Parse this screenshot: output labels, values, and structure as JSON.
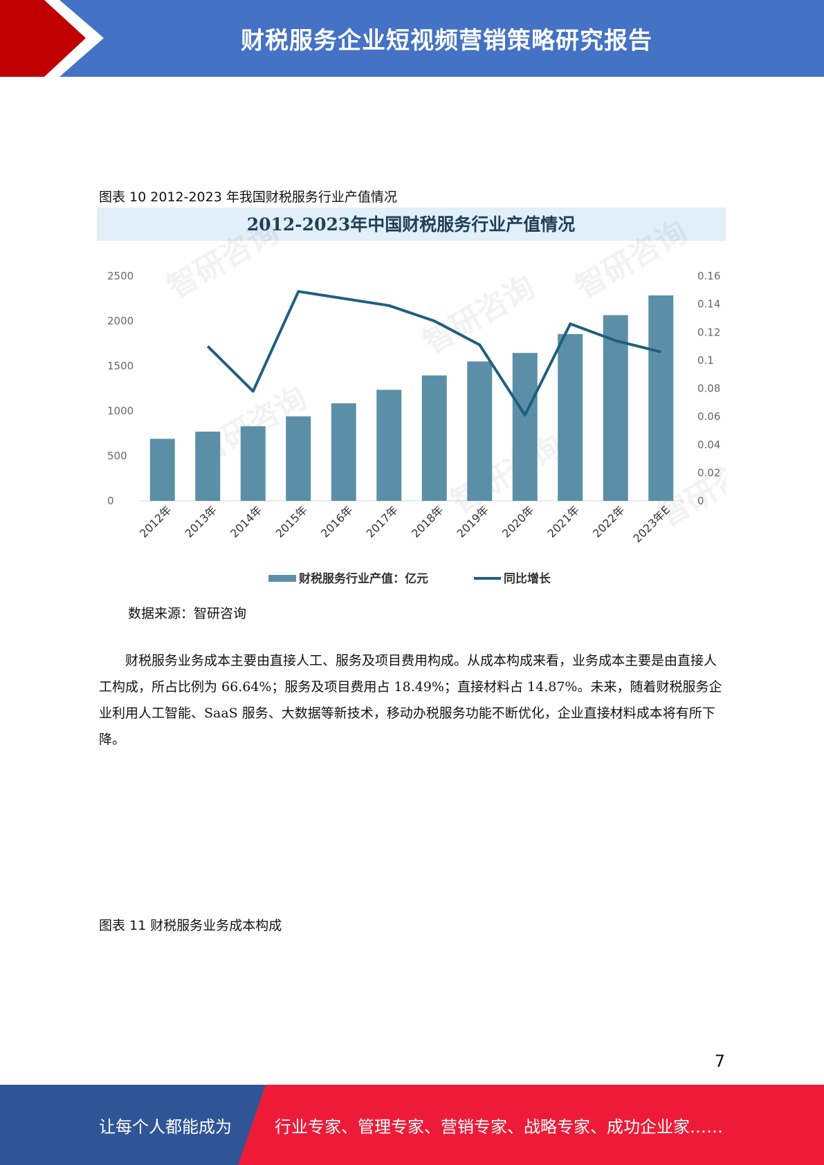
{
  "header": {
    "title": "财税服务企业短视频营销策略研究报告"
  },
  "figure10": {
    "caption": "图表 10 2012-2023 年我国财税服务行业产值情况",
    "source": "数据来源：智研咨询"
  },
  "chart_data": {
    "type": "bar",
    "title": "2012-2023年中国财税服务行业产值情况",
    "categories": [
      "2012年",
      "2013年",
      "2014年",
      "2015年",
      "2016年",
      "2017年",
      "2018年",
      "2019年",
      "2020年",
      "2021年",
      "2022年",
      "2023年E"
    ],
    "series": [
      {
        "name": "财税服务行业产值：亿元",
        "type": "bar",
        "axis": "left",
        "values": [
          690,
          770,
          830,
          940,
          1085,
          1235,
          1395,
          1550,
          1645,
          1855,
          2065,
          2285
        ]
      },
      {
        "name": "同比增长",
        "type": "line",
        "axis": "right",
        "values": [
          null,
          0.11,
          0.078,
          0.149,
          0.144,
          0.139,
          0.128,
          0.111,
          0.061,
          0.126,
          0.114,
          0.106
        ]
      }
    ],
    "y_left_ticks": [
      "2500",
      "2000",
      "1500",
      "1000",
      "500",
      "0"
    ],
    "y_right_ticks": [
      "0.16",
      "0.14",
      "0.12",
      "0.1",
      "0.08",
      "0.06",
      "0.04",
      "0.02",
      "0"
    ],
    "ylim_left": [
      0,
      2500
    ],
    "ylim_right": [
      0,
      0.16
    ],
    "watermark": "智研咨询",
    "legend_position": "bottom",
    "colors": {
      "bar": "#5b8fa8",
      "line": "#1f5f7f",
      "title_band": "#e1eff8"
    }
  },
  "paragraph": "财税服务业务成本主要由直接人工、服务及项目费用构成。从成本构成来看，业务成本主要是由直接人工构成，所占比例为 66.64%；服务及项目费用占 18.49%；直接材料占 14.87%。未来，随着财税服务企业利用人工智能、SaaS 服务、大数据等新技术，移动办税服务功能不断优化，企业直接材料成本将有所下降。",
  "figure11": {
    "caption": "图表 11 财税服务业务成本构成"
  },
  "page_number": "7",
  "footer": {
    "slogan_left": "让每个人都能成为",
    "slogan_right": "行业专家、管理专家、营销专家、战略专家、成功企业家……"
  },
  "colors": {
    "header_blue": "#4472c4",
    "header_red": "#c00000",
    "footer_blue": "#2f5597",
    "footer_red": "#ee1b38"
  }
}
